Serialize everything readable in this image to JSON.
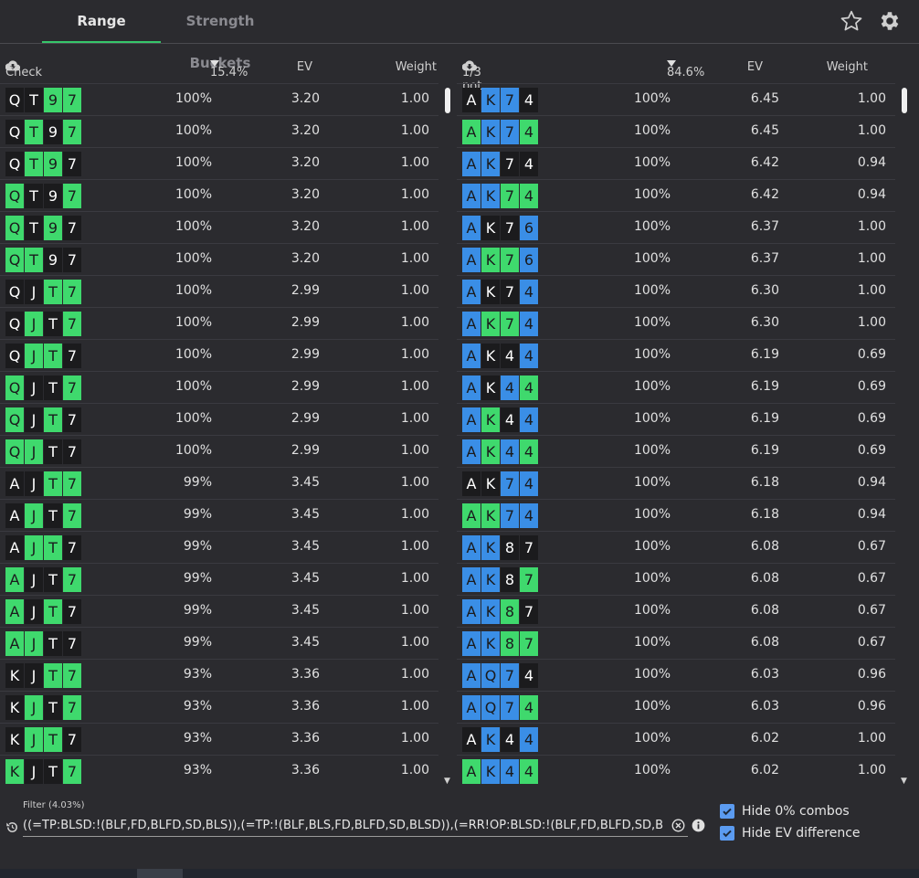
{
  "tabs": [
    {
      "label": "Range"
    },
    {
      "label": "Strength Buckets"
    }
  ],
  "icons": {
    "star": "star-icon",
    "settings": "gear-icon"
  },
  "colors": {
    "accent": "#36c76a",
    "green_card": "#3fd96d",
    "blue_card": "#3a8ee6",
    "dark_card": "#1b1b1d",
    "checkbox": "#5b9bf0"
  },
  "left_table": {
    "action": "Check",
    "frequency": "15.4%",
    "ev_header": "EV",
    "weight_header": "Weight",
    "rows": [
      {
        "cards": [
          [
            "Q",
            "d"
          ],
          [
            "T",
            "d"
          ],
          [
            "9",
            "g"
          ],
          [
            "7",
            "g"
          ]
        ],
        "pct": "100%",
        "ev": "3.20",
        "weight": "1.00"
      },
      {
        "cards": [
          [
            "Q",
            "d"
          ],
          [
            "T",
            "g"
          ],
          [
            "9",
            "d"
          ],
          [
            "7",
            "g"
          ]
        ],
        "pct": "100%",
        "ev": "3.20",
        "weight": "1.00"
      },
      {
        "cards": [
          [
            "Q",
            "d"
          ],
          [
            "T",
            "g"
          ],
          [
            "9",
            "g"
          ],
          [
            "7",
            "d"
          ]
        ],
        "pct": "100%",
        "ev": "3.20",
        "weight": "1.00"
      },
      {
        "cards": [
          [
            "Q",
            "g"
          ],
          [
            "T",
            "d"
          ],
          [
            "9",
            "d"
          ],
          [
            "7",
            "g"
          ]
        ],
        "pct": "100%",
        "ev": "3.20",
        "weight": "1.00"
      },
      {
        "cards": [
          [
            "Q",
            "g"
          ],
          [
            "T",
            "d"
          ],
          [
            "9",
            "g"
          ],
          [
            "7",
            "d"
          ]
        ],
        "pct": "100%",
        "ev": "3.20",
        "weight": "1.00"
      },
      {
        "cards": [
          [
            "Q",
            "g"
          ],
          [
            "T",
            "g"
          ],
          [
            "9",
            "d"
          ],
          [
            "7",
            "d"
          ]
        ],
        "pct": "100%",
        "ev": "3.20",
        "weight": "1.00"
      },
      {
        "cards": [
          [
            "Q",
            "d"
          ],
          [
            "J",
            "d"
          ],
          [
            "T",
            "g"
          ],
          [
            "7",
            "g"
          ]
        ],
        "pct": "100%",
        "ev": "2.99",
        "weight": "1.00"
      },
      {
        "cards": [
          [
            "Q",
            "d"
          ],
          [
            "J",
            "g"
          ],
          [
            "T",
            "d"
          ],
          [
            "7",
            "g"
          ]
        ],
        "pct": "100%",
        "ev": "2.99",
        "weight": "1.00"
      },
      {
        "cards": [
          [
            "Q",
            "d"
          ],
          [
            "J",
            "g"
          ],
          [
            "T",
            "g"
          ],
          [
            "7",
            "d"
          ]
        ],
        "pct": "100%",
        "ev": "2.99",
        "weight": "1.00"
      },
      {
        "cards": [
          [
            "Q",
            "g"
          ],
          [
            "J",
            "d"
          ],
          [
            "T",
            "d"
          ],
          [
            "7",
            "g"
          ]
        ],
        "pct": "100%",
        "ev": "2.99",
        "weight": "1.00"
      },
      {
        "cards": [
          [
            "Q",
            "g"
          ],
          [
            "J",
            "d"
          ],
          [
            "T",
            "g"
          ],
          [
            "7",
            "d"
          ]
        ],
        "pct": "100%",
        "ev": "2.99",
        "weight": "1.00"
      },
      {
        "cards": [
          [
            "Q",
            "g"
          ],
          [
            "J",
            "g"
          ],
          [
            "T",
            "d"
          ],
          [
            "7",
            "d"
          ]
        ],
        "pct": "100%",
        "ev": "2.99",
        "weight": "1.00"
      },
      {
        "cards": [
          [
            "A",
            "d"
          ],
          [
            "J",
            "d"
          ],
          [
            "T",
            "g"
          ],
          [
            "7",
            "g"
          ]
        ],
        "pct": "99%",
        "ev": "3.45",
        "weight": "1.00"
      },
      {
        "cards": [
          [
            "A",
            "d"
          ],
          [
            "J",
            "g"
          ],
          [
            "T",
            "d"
          ],
          [
            "7",
            "g"
          ]
        ],
        "pct": "99%",
        "ev": "3.45",
        "weight": "1.00"
      },
      {
        "cards": [
          [
            "A",
            "d"
          ],
          [
            "J",
            "g"
          ],
          [
            "T",
            "g"
          ],
          [
            "7",
            "d"
          ]
        ],
        "pct": "99%",
        "ev": "3.45",
        "weight": "1.00"
      },
      {
        "cards": [
          [
            "A",
            "g"
          ],
          [
            "J",
            "d"
          ],
          [
            "T",
            "d"
          ],
          [
            "7",
            "g"
          ]
        ],
        "pct": "99%",
        "ev": "3.45",
        "weight": "1.00"
      },
      {
        "cards": [
          [
            "A",
            "g"
          ],
          [
            "J",
            "d"
          ],
          [
            "T",
            "g"
          ],
          [
            "7",
            "d"
          ]
        ],
        "pct": "99%",
        "ev": "3.45",
        "weight": "1.00"
      },
      {
        "cards": [
          [
            "A",
            "g"
          ],
          [
            "J",
            "g"
          ],
          [
            "T",
            "d"
          ],
          [
            "7",
            "d"
          ]
        ],
        "pct": "99%",
        "ev": "3.45",
        "weight": "1.00"
      },
      {
        "cards": [
          [
            "K",
            "d"
          ],
          [
            "J",
            "d"
          ],
          [
            "T",
            "g"
          ],
          [
            "7",
            "g"
          ]
        ],
        "pct": "93%",
        "ev": "3.36",
        "weight": "1.00"
      },
      {
        "cards": [
          [
            "K",
            "d"
          ],
          [
            "J",
            "g"
          ],
          [
            "T",
            "d"
          ],
          [
            "7",
            "g"
          ]
        ],
        "pct": "93%",
        "ev": "3.36",
        "weight": "1.00"
      },
      {
        "cards": [
          [
            "K",
            "d"
          ],
          [
            "J",
            "g"
          ],
          [
            "T",
            "g"
          ],
          [
            "7",
            "d"
          ]
        ],
        "pct": "93%",
        "ev": "3.36",
        "weight": "1.00"
      },
      {
        "cards": [
          [
            "K",
            "g"
          ],
          [
            "J",
            "d"
          ],
          [
            "T",
            "d"
          ],
          [
            "7",
            "g"
          ]
        ],
        "pct": "93%",
        "ev": "3.36",
        "weight": "1.00"
      }
    ]
  },
  "right_table": {
    "action": "1/3 pot",
    "frequency": "84.6%",
    "ev_header": "EV",
    "weight_header": "Weight",
    "rows": [
      {
        "cards": [
          [
            "A",
            "d"
          ],
          [
            "K",
            "b"
          ],
          [
            "7",
            "b"
          ],
          [
            "4",
            "d"
          ]
        ],
        "pct": "100%",
        "ev": "6.45",
        "weight": "1.00"
      },
      {
        "cards": [
          [
            "A",
            "g"
          ],
          [
            "K",
            "b"
          ],
          [
            "7",
            "b"
          ],
          [
            "4",
            "g"
          ]
        ],
        "pct": "100%",
        "ev": "6.45",
        "weight": "1.00"
      },
      {
        "cards": [
          [
            "A",
            "b"
          ],
          [
            "K",
            "b"
          ],
          [
            "7",
            "d"
          ],
          [
            "4",
            "d"
          ]
        ],
        "pct": "100%",
        "ev": "6.42",
        "weight": "0.94"
      },
      {
        "cards": [
          [
            "A",
            "b"
          ],
          [
            "K",
            "b"
          ],
          [
            "7",
            "g"
          ],
          [
            "4",
            "g"
          ]
        ],
        "pct": "100%",
        "ev": "6.42",
        "weight": "0.94"
      },
      {
        "cards": [
          [
            "A",
            "b"
          ],
          [
            "K",
            "d"
          ],
          [
            "7",
            "d"
          ],
          [
            "6",
            "b"
          ]
        ],
        "pct": "100%",
        "ev": "6.37",
        "weight": "1.00"
      },
      {
        "cards": [
          [
            "A",
            "b"
          ],
          [
            "K",
            "g"
          ],
          [
            "7",
            "g"
          ],
          [
            "6",
            "b"
          ]
        ],
        "pct": "100%",
        "ev": "6.37",
        "weight": "1.00"
      },
      {
        "cards": [
          [
            "A",
            "b"
          ],
          [
            "K",
            "d"
          ],
          [
            "7",
            "d"
          ],
          [
            "4",
            "b"
          ]
        ],
        "pct": "100%",
        "ev": "6.30",
        "weight": "1.00"
      },
      {
        "cards": [
          [
            "A",
            "b"
          ],
          [
            "K",
            "g"
          ],
          [
            "7",
            "g"
          ],
          [
            "4",
            "b"
          ]
        ],
        "pct": "100%",
        "ev": "6.30",
        "weight": "1.00"
      },
      {
        "cards": [
          [
            "A",
            "b"
          ],
          [
            "K",
            "d"
          ],
          [
            "4",
            "d"
          ],
          [
            "4",
            "b"
          ]
        ],
        "pct": "100%",
        "ev": "6.19",
        "weight": "0.69"
      },
      {
        "cards": [
          [
            "A",
            "b"
          ],
          [
            "K",
            "d"
          ],
          [
            "4",
            "b"
          ],
          [
            "4",
            "g"
          ]
        ],
        "pct": "100%",
        "ev": "6.19",
        "weight": "0.69"
      },
      {
        "cards": [
          [
            "A",
            "b"
          ],
          [
            "K",
            "g"
          ],
          [
            "4",
            "d"
          ],
          [
            "4",
            "b"
          ]
        ],
        "pct": "100%",
        "ev": "6.19",
        "weight": "0.69"
      },
      {
        "cards": [
          [
            "A",
            "b"
          ],
          [
            "K",
            "g"
          ],
          [
            "4",
            "b"
          ],
          [
            "4",
            "g"
          ]
        ],
        "pct": "100%",
        "ev": "6.19",
        "weight": "0.69"
      },
      {
        "cards": [
          [
            "A",
            "d"
          ],
          [
            "K",
            "d"
          ],
          [
            "7",
            "b"
          ],
          [
            "4",
            "b"
          ]
        ],
        "pct": "100%",
        "ev": "6.18",
        "weight": "0.94"
      },
      {
        "cards": [
          [
            "A",
            "g"
          ],
          [
            "K",
            "g"
          ],
          [
            "7",
            "b"
          ],
          [
            "4",
            "b"
          ]
        ],
        "pct": "100%",
        "ev": "6.18",
        "weight": "0.94"
      },
      {
        "cards": [
          [
            "A",
            "b"
          ],
          [
            "K",
            "b"
          ],
          [
            "8",
            "d"
          ],
          [
            "7",
            "d"
          ]
        ],
        "pct": "100%",
        "ev": "6.08",
        "weight": "0.67"
      },
      {
        "cards": [
          [
            "A",
            "b"
          ],
          [
            "K",
            "b"
          ],
          [
            "8",
            "d"
          ],
          [
            "7",
            "g"
          ]
        ],
        "pct": "100%",
        "ev": "6.08",
        "weight": "0.67"
      },
      {
        "cards": [
          [
            "A",
            "b"
          ],
          [
            "K",
            "b"
          ],
          [
            "8",
            "g"
          ],
          [
            "7",
            "d"
          ]
        ],
        "pct": "100%",
        "ev": "6.08",
        "weight": "0.67"
      },
      {
        "cards": [
          [
            "A",
            "b"
          ],
          [
            "K",
            "b"
          ],
          [
            "8",
            "g"
          ],
          [
            "7",
            "g"
          ]
        ],
        "pct": "100%",
        "ev": "6.08",
        "weight": "0.67"
      },
      {
        "cards": [
          [
            "A",
            "b"
          ],
          [
            "Q",
            "b"
          ],
          [
            "7",
            "b"
          ],
          [
            "4",
            "d"
          ]
        ],
        "pct": "100%",
        "ev": "6.03",
        "weight": "0.96"
      },
      {
        "cards": [
          [
            "A",
            "b"
          ],
          [
            "Q",
            "b"
          ],
          [
            "7",
            "b"
          ],
          [
            "4",
            "g"
          ]
        ],
        "pct": "100%",
        "ev": "6.03",
        "weight": "0.96"
      },
      {
        "cards": [
          [
            "A",
            "d"
          ],
          [
            "K",
            "b"
          ],
          [
            "4",
            "d"
          ],
          [
            "4",
            "b"
          ]
        ],
        "pct": "100%",
        "ev": "6.02",
        "weight": "1.00"
      },
      {
        "cards": [
          [
            "A",
            "g"
          ],
          [
            "K",
            "b"
          ],
          [
            "4",
            "b"
          ],
          [
            "4",
            "g"
          ]
        ],
        "pct": "100%",
        "ev": "6.02",
        "weight": "1.00"
      }
    ]
  },
  "filter": {
    "label": "Filter (4.03%)",
    "value": "((=TP:BLSD:!(BLF,FD,BLFD,SD,BLS)),(=TP:!(BLF,BLS,FD,BLFD,SD,BLSD)),(=RR!OP:BLSD:!(BLF,FD,BLFD,SD,BLS)))"
  },
  "options": [
    {
      "label": "Hide 0% combos",
      "checked": true
    },
    {
      "label": "Hide EV difference",
      "checked": true
    }
  ]
}
